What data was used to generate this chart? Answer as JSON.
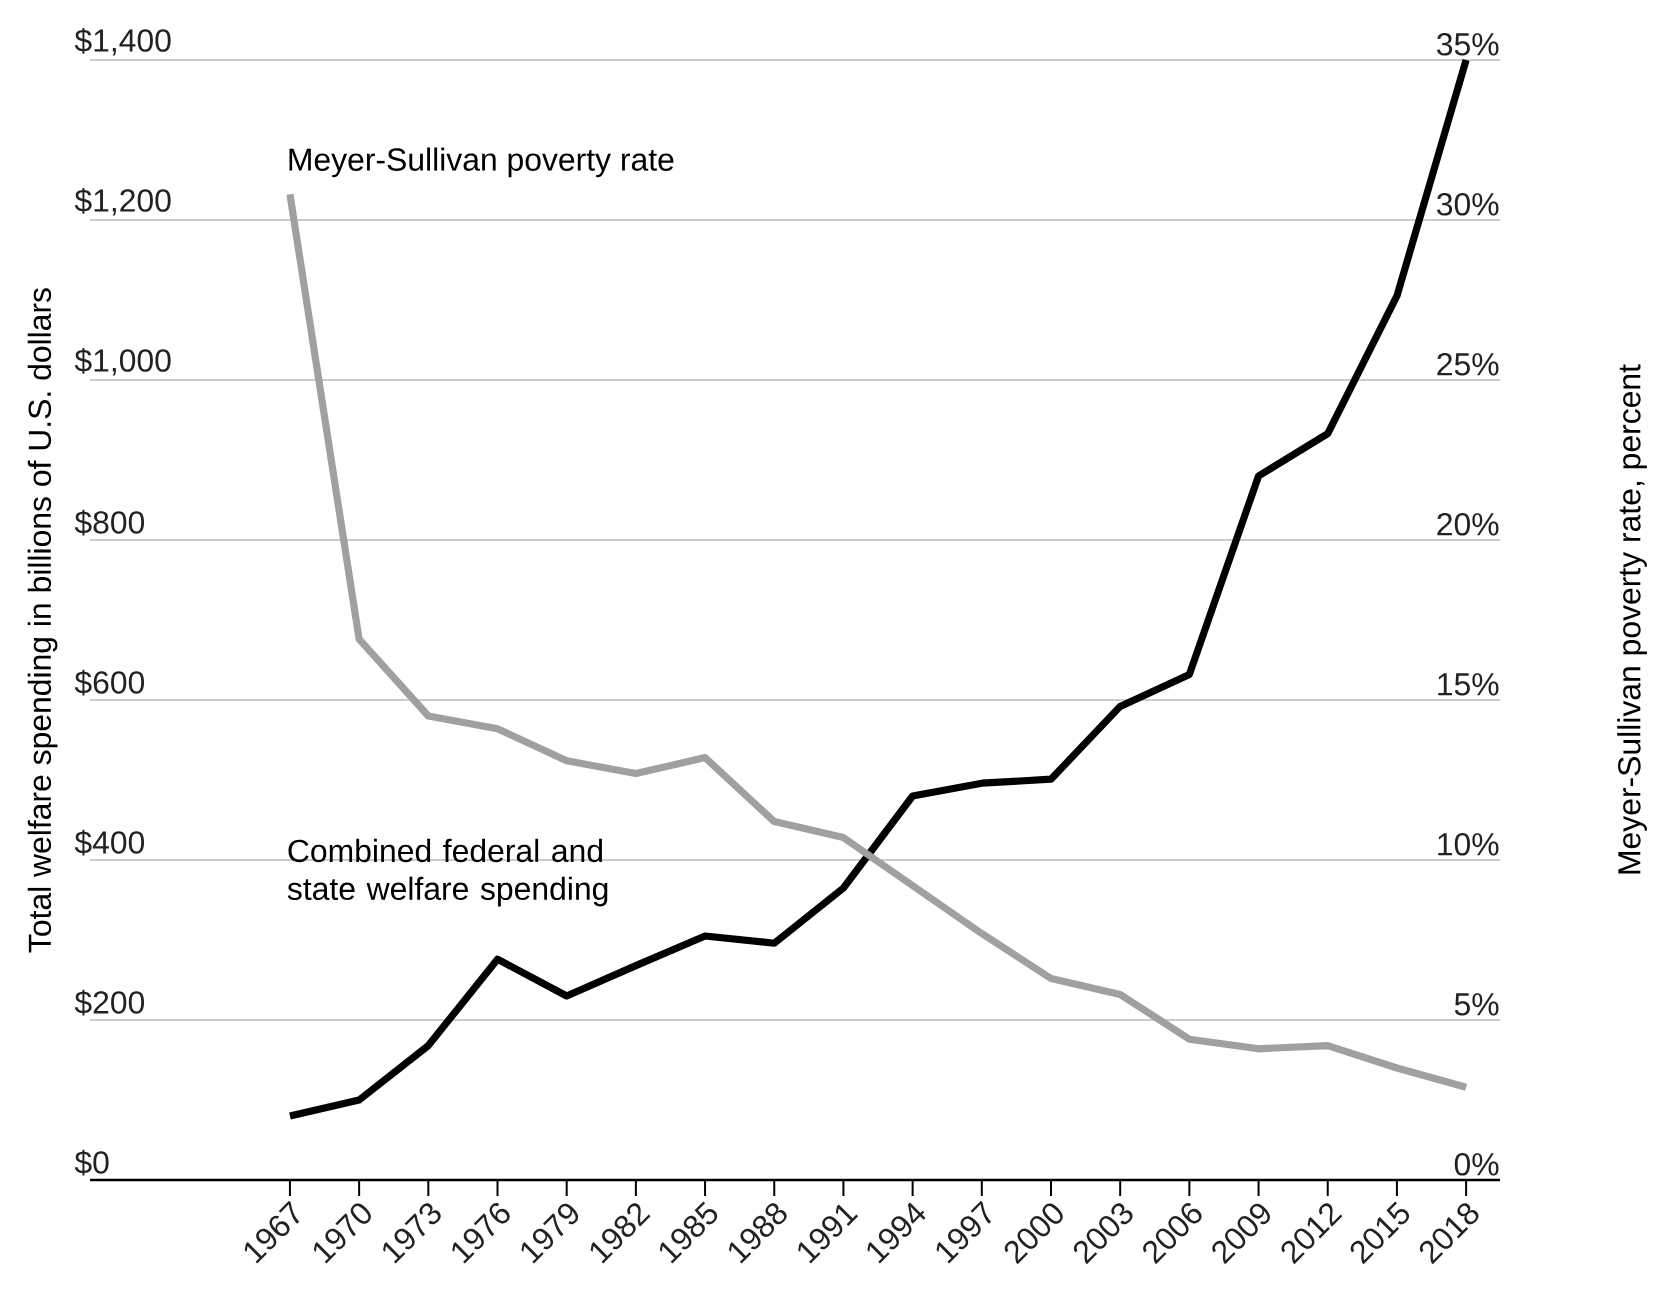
{
  "chart_data": {
    "type": "line",
    "categories": [
      "1967",
      "1970",
      "1973",
      "1976",
      "1979",
      "1982",
      "1985",
      "1988",
      "1991",
      "1994",
      "1997",
      "2000",
      "2003",
      "2006",
      "2009",
      "2012",
      "2015",
      "2018"
    ],
    "series": [
      {
        "name": "Combined federal and state welfare spending",
        "color": "#000000",
        "values": [
          80,
          100,
          168,
          276,
          230,
          268,
          305,
          296,
          365,
          480,
          496,
          501,
          592,
          632,
          880,
          933,
          1105,
          1400
        ]
      },
      {
        "name": "Meyer-Sullivan poverty rate",
        "color": "#a0a0a0",
        "axis": "y2",
        "values": [
          30.8,
          16.9,
          14.5,
          14.1,
          13.1,
          12.7,
          13.2,
          11.2,
          10.7,
          9.2,
          7.7,
          6.3,
          5.8,
          4.4,
          4.1,
          4.2,
          3.5,
          2.9
        ]
      }
    ],
    "ylabel": "Total welfare spending in billions of U.S. dollars",
    "y2label": "Meyer-Sullivan poverty rate, percent",
    "ylim": [
      0,
      1400
    ],
    "yticks": [
      {
        "value": 0,
        "label": "$0"
      },
      {
        "value": 200,
        "label": "$200"
      },
      {
        "value": 400,
        "label": "$400"
      },
      {
        "value": 600,
        "label": "$600"
      },
      {
        "value": 800,
        "label": "$800"
      },
      {
        "value": 1000,
        "label": "$1,000"
      },
      {
        "value": 1200,
        "label": "$1,200"
      },
      {
        "value": 1400,
        "label": "$1,400"
      }
    ],
    "y2lim": [
      0,
      35
    ],
    "y2ticks": [
      {
        "value": 0,
        "label": "0%"
      },
      {
        "value": 5,
        "label": "5%"
      },
      {
        "value": 10,
        "label": "10%"
      },
      {
        "value": 15,
        "label": "15%"
      },
      {
        "value": 20,
        "label": "20%"
      },
      {
        "value": 25,
        "label": "25%"
      },
      {
        "value": 30,
        "label": "30%"
      },
      {
        "value": 35,
        "label": "35%"
      }
    ],
    "grid": "y",
    "legend": false,
    "marker": "none",
    "line_style": "solid"
  }
}
